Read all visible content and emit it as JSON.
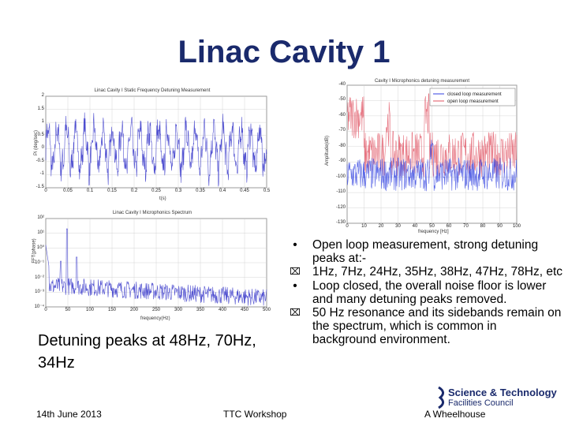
{
  "slide": {
    "title": "Linac Cavity 1",
    "caption": "Detuning peaks at 48Hz, 70Hz, 34Hz",
    "bullets": [
      {
        "marker": "•",
        "text": "Open loop measurement, strong detuning peaks at:-"
      },
      {
        "marker": "⌧",
        "text": "1Hz, 7Hz, 24Hz, 35Hz, 38Hz, 47Hz, 78Hz, etc"
      },
      {
        "marker": "•",
        "text": "Loop closed, the overall noise floor is lower and many detuning peaks removed."
      },
      {
        "marker": "⌧",
        "text": "50 Hz resonance and its sidebands remain on the spectrum, which is common in background environment."
      }
    ],
    "footer": {
      "date": "14th June 2013",
      "event": "TTC Workshop",
      "author": "A Wheelhouse"
    },
    "logo": {
      "line1": "Science & Technology",
      "line2": "Facilities Council"
    }
  },
  "chart_data": [
    {
      "type": "line",
      "title": "Linac Cavity I Static Frequency Detuning Measurement",
      "xlabel": "t(s)",
      "ylabel": "Pi (deg/sec)",
      "xlim": [
        0,
        0.5
      ],
      "ylim": [
        -1.5,
        2
      ],
      "x_ticks": [
        "0",
        "0.05",
        "0.1",
        "0.15",
        "0.2",
        "0.25",
        "0.3",
        "0.35",
        "0.4",
        "0.45",
        "0.5"
      ],
      "y_ticks": [
        "2",
        "1.5",
        "1",
        "0.5",
        "0",
        "-0.5",
        "-1",
        "-1.5"
      ],
      "grid": true,
      "series": [
        {
          "color": "#3030c8"
        }
      ]
    },
    {
      "type": "line",
      "title": "Linac Cavity I Microphonics Spectrum",
      "xlabel": "frequency(Hz)",
      "ylabel": "FFT(phase)",
      "xlim": [
        0,
        500
      ],
      "y_scale": "log",
      "y_ticks": [
        "10²",
        "10¹",
        "10⁰",
        "10⁻¹",
        "10⁻²",
        "10⁻³",
        "10⁻⁴"
      ],
      "x_ticks": [
        "0",
        "50",
        "100",
        "150",
        "200",
        "250",
        "300",
        "350",
        "400",
        "450",
        "500"
      ],
      "grid": true,
      "series": [
        {
          "color": "#5050d0"
        }
      ]
    },
    {
      "type": "line",
      "title": "Cavity I Microphonics detuning measurement",
      "xlabel": "frequency [Hz]",
      "ylabel": "Amplitude(dB)",
      "xlim": [
        0,
        100
      ],
      "ylim": [
        -130,
        -40
      ],
      "y_ticks": [
        "-40",
        "-50",
        "-60",
        "-70",
        "-80",
        "-90",
        "-100",
        "-110",
        "-120",
        "-130"
      ],
      "x_ticks": [
        "0",
        "10",
        "20",
        "30",
        "40",
        "50",
        "60",
        "70",
        "80",
        "90",
        "100"
      ],
      "legend_position": "top-right",
      "grid": true,
      "series": [
        {
          "name": "closed loop measurement",
          "color": "#3040e0"
        },
        {
          "name": "open loop measurement",
          "color": "#e05060"
        }
      ]
    }
  ]
}
